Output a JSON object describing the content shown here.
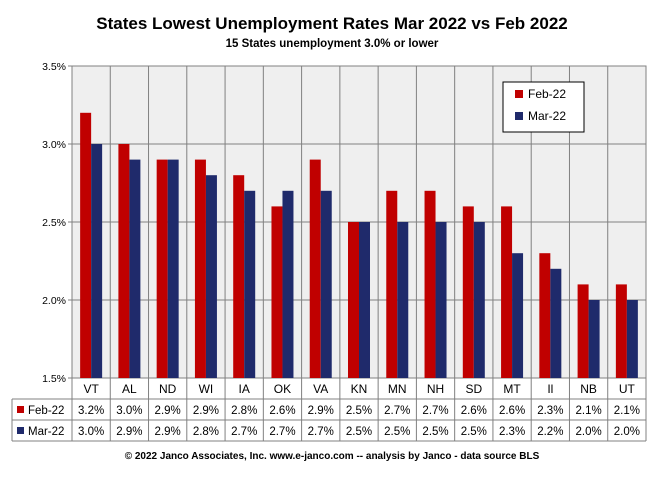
{
  "header": {
    "title": "States Lowest Unemployment Rates Mar 2022 vs Feb 2022",
    "subtitle": "15 States  unemployment 3.0% or lower"
  },
  "footer": {
    "credit": "© 2022 Janco Associates, Inc. www.e-janco.com -- analysis by Janco - data source BLS"
  },
  "colors": {
    "feb": "#c00000",
    "mar": "#1f2a6b",
    "plot_bg": "#efefef"
  },
  "chart_data": {
    "type": "bar",
    "title": "States Lowest Unemployment Rates Mar 2022 vs Feb 2022",
    "subtitle": "15 States  unemployment 3.0% or lower",
    "xlabel": "",
    "ylabel": "",
    "ylim": [
      1.5,
      3.5
    ],
    "yticks": [
      1.5,
      2.0,
      2.5,
      3.0,
      3.5
    ],
    "ytick_labels": [
      "1.5%",
      "2.0%",
      "2.5%",
      "3.0%",
      "3.5%"
    ],
    "grid": true,
    "legend_position": "top-right",
    "categories": [
      "VT",
      "AL",
      "ND",
      "WI",
      "IA",
      "OK",
      "VA",
      "KN",
      "MN",
      "NH",
      "SD",
      "MT",
      "Il",
      "NB",
      "UT"
    ],
    "series": [
      {
        "name": "Feb-22",
        "values": [
          3.2,
          3.0,
          2.9,
          2.9,
          2.8,
          2.6,
          2.9,
          2.5,
          2.7,
          2.7,
          2.6,
          2.6,
          2.3,
          2.1,
          2.1
        ],
        "labels": [
          "3.2%",
          "3.0%",
          "2.9%",
          "2.9%",
          "2.8%",
          "2.6%",
          "2.9%",
          "2.5%",
          "2.7%",
          "2.7%",
          "2.6%",
          "2.6%",
          "2.3%",
          "2.1%",
          "2.1%"
        ]
      },
      {
        "name": "Mar-22",
        "values": [
          3.0,
          2.9,
          2.9,
          2.8,
          2.7,
          2.7,
          2.7,
          2.5,
          2.5,
          2.5,
          2.5,
          2.3,
          2.2,
          2.0,
          2.0
        ],
        "labels": [
          "3.0%",
          "2.9%",
          "2.9%",
          "2.8%",
          "2.7%",
          "2.7%",
          "2.7%",
          "2.5%",
          "2.5%",
          "2.5%",
          "2.5%",
          "2.3%",
          "2.2%",
          "2.0%",
          "2.0%"
        ]
      }
    ]
  }
}
